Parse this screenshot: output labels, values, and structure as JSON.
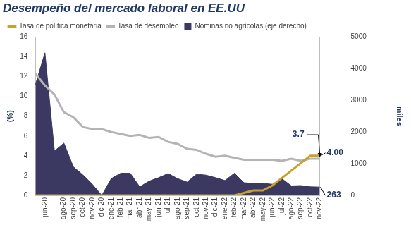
{
  "chart_data": {
    "type": "line",
    "title": "Desempeño del mercado laboral en EE.UU",
    "categories": [
      null,
      "jun-20",
      null,
      "ago-20",
      "sep-20",
      "oct-20",
      "nov-20",
      "dic-20",
      "ene-21",
      "feb-21",
      "mar-21",
      "abr-21",
      "may-21",
      "jun-21",
      "jul-21",
      "ago-21",
      "sep-21",
      "oct-21",
      "nov-21",
      "dic-21",
      "ene-22",
      "feb-22",
      "mar-22",
      "abr-22",
      "may-22",
      "jun-22",
      "jul-22",
      "ago-22",
      "sep-22",
      "oct-22",
      "nov-22"
    ],
    "series": [
      {
        "name": "Nóminas no agrícolas (eje derecho)",
        "type": "area",
        "axis": "y2",
        "color": "#3b3862",
        "values": [
          3500,
          4500,
          1400,
          1650,
          900,
          650,
          350,
          0,
          530,
          700,
          700,
          270,
          450,
          560,
          690,
          530,
          420,
          670,
          640,
          560,
          470,
          700,
          400,
          380,
          380,
          350,
          530,
          300,
          310,
          270,
          263
        ]
      },
      {
        "name": "Tasa de desempleo",
        "type": "line",
        "color": "#b4b4b4",
        "values": [
          12.3,
          11.1,
          10.2,
          8.4,
          7.9,
          6.9,
          6.7,
          6.7,
          6.4,
          6.2,
          6.0,
          6.1,
          5.8,
          5.9,
          5.4,
          5.2,
          4.7,
          4.6,
          4.2,
          3.9,
          4.0,
          3.8,
          3.6,
          3.6,
          3.6,
          3.6,
          3.5,
          3.7,
          3.5,
          3.7,
          3.7
        ]
      },
      {
        "name": "Tasa de política monetaria",
        "type": "line",
        "color": "#c8a02a",
        "values": [
          0,
          0,
          0,
          0,
          0,
          0,
          0,
          0,
          0,
          0,
          0,
          0,
          0,
          0,
          0,
          0,
          0,
          0,
          0,
          0,
          0,
          0,
          0.25,
          0.5,
          0.5,
          1.0,
          1.75,
          2.5,
          3.25,
          4.0,
          4.0
        ]
      }
    ],
    "y_label": "(%)",
    "y2_label": "miles",
    "ylim": [
      0,
      16
    ],
    "yticks": [
      0,
      2,
      4,
      6,
      8,
      10,
      12,
      14,
      16
    ],
    "y2lim": [
      0,
      5000
    ],
    "y2ticks": [
      0,
      1000,
      2000,
      3000,
      4000,
      5000
    ],
    "grid": false,
    "legend": "top",
    "annotations": [
      {
        "text": "3.7",
        "x": "nov-22",
        "y": 3.7
      },
      {
        "text": "4.00",
        "x": "nov-22",
        "y": 4.0
      },
      {
        "text": "263",
        "x": "nov-22",
        "y": 263,
        "axis": "y2"
      }
    ]
  }
}
